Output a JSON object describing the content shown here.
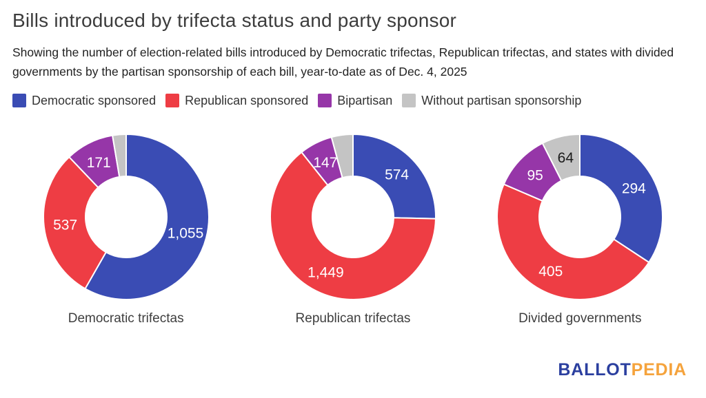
{
  "title": "Bills introduced by trifecta status and party sponsor",
  "subtitle": "Showing the number of election-related bills introduced by Democratic trifectas, Republican trifectas, and states with divided governments by the partisan sponsorship of each bill, year-to-date as of Dec. 4, 2025",
  "legend": {
    "items": [
      {
        "label": "Democratic sponsored",
        "color": "#3a4cb4"
      },
      {
        "label": "Republican sponsored",
        "color": "#ee3d44"
      },
      {
        "label": "Bipartisan",
        "color": "#9636a8"
      },
      {
        "label": "Without partisan sponsorship",
        "color": "#c4c4c4"
      }
    ]
  },
  "chart_data": {
    "type": "pie",
    "variant": "donut",
    "legend_position": "top",
    "start_angle_deg": 0,
    "direction": "clockwise",
    "sponsor_categories": [
      "Democratic sponsored",
      "Republican sponsored",
      "Bipartisan",
      "Without partisan sponsorship"
    ],
    "charts": [
      {
        "label": "Democratic trifectas",
        "slices": [
          {
            "sponsor": "Democratic sponsored",
            "value": 1055,
            "display": "1,055",
            "color": "#3a4cb4",
            "label_color": "#ffffff"
          },
          {
            "sponsor": "Republican sponsored",
            "value": 537,
            "display": "537",
            "color": "#ee3d44",
            "label_color": "#ffffff"
          },
          {
            "sponsor": "Bipartisan",
            "value": 171,
            "display": "171",
            "color": "#9636a8",
            "label_color": "#ffffff"
          },
          {
            "sponsor": "Without partisan sponsorship",
            "value": 48,
            "display": "",
            "estimated": true,
            "color": "#c4c4c4",
            "label_color": "#1a1a1a"
          }
        ]
      },
      {
        "label": "Republican trifectas",
        "slices": [
          {
            "sponsor": "Democratic sponsored",
            "value": 574,
            "display": "574",
            "color": "#3a4cb4",
            "label_color": "#ffffff"
          },
          {
            "sponsor": "Republican sponsored",
            "value": 1449,
            "display": "1,449",
            "color": "#ee3d44",
            "label_color": "#ffffff"
          },
          {
            "sponsor": "Bipartisan",
            "value": 147,
            "display": "147",
            "color": "#9636a8",
            "label_color": "#ffffff"
          },
          {
            "sponsor": "Without partisan sponsorship",
            "value": 95,
            "display": "",
            "estimated": true,
            "color": "#c4c4c4",
            "label_color": "#1a1a1a"
          }
        ]
      },
      {
        "label": "Divided governments",
        "slices": [
          {
            "sponsor": "Democratic sponsored",
            "value": 294,
            "display": "294",
            "color": "#3a4cb4",
            "label_color": "#ffffff"
          },
          {
            "sponsor": "Republican sponsored",
            "value": 405,
            "display": "405",
            "color": "#ee3d44",
            "label_color": "#ffffff"
          },
          {
            "sponsor": "Bipartisan",
            "value": 95,
            "display": "95",
            "color": "#9636a8",
            "label_color": "#ffffff"
          },
          {
            "sponsor": "Without partisan sponsorship",
            "value": 64,
            "display": "64",
            "color": "#c4c4c4",
            "label_color": "#1a1a1a"
          }
        ]
      }
    ]
  },
  "footer": {
    "ballot_text": "BALLOT",
    "pedia_text": "PEDIA",
    "ballot_color": "#2b3f9f",
    "pedia_color": "#f5a33c"
  }
}
